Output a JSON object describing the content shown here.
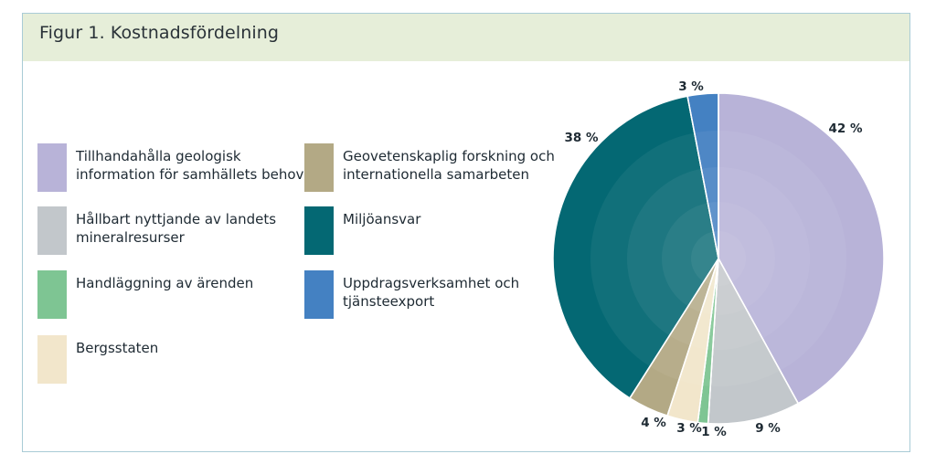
{
  "title": "Figur 1. Kostnadsfördelning",
  "chart_data": {
    "type": "pie",
    "start_angle_deg": 0,
    "direction": "clockwise",
    "slices": [
      {
        "label": "Tillhandahålla geologisk information för samhällets behov",
        "value": 42,
        "value_label": "42 %",
        "color": "#b8b3d8"
      },
      {
        "label": "Hållbart nyttjande av landets mineralresurser",
        "value": 9,
        "value_label": "9 %",
        "color": "#c2c7cb"
      },
      {
        "label": "Handläggning av ärenden",
        "value": 1,
        "value_label": "1 %",
        "color": "#7ec593"
      },
      {
        "label": "Bergsstaten",
        "value": 3,
        "value_label": "3 %",
        "color": "#f2e6cb"
      },
      {
        "label": "Geovetenskaplig forskning och internationella samarbeten",
        "value": 4,
        "value_label": "4 %",
        "color": "#b3a985"
      },
      {
        "label": "Miljöansvar",
        "value": 38,
        "value_label": "38 %",
        "color": "#046873"
      },
      {
        "label": "Uppdragsverksamhet och tjänsteexport",
        "value": 3,
        "value_label": "3 %",
        "color": "#4481c2"
      }
    ]
  }
}
